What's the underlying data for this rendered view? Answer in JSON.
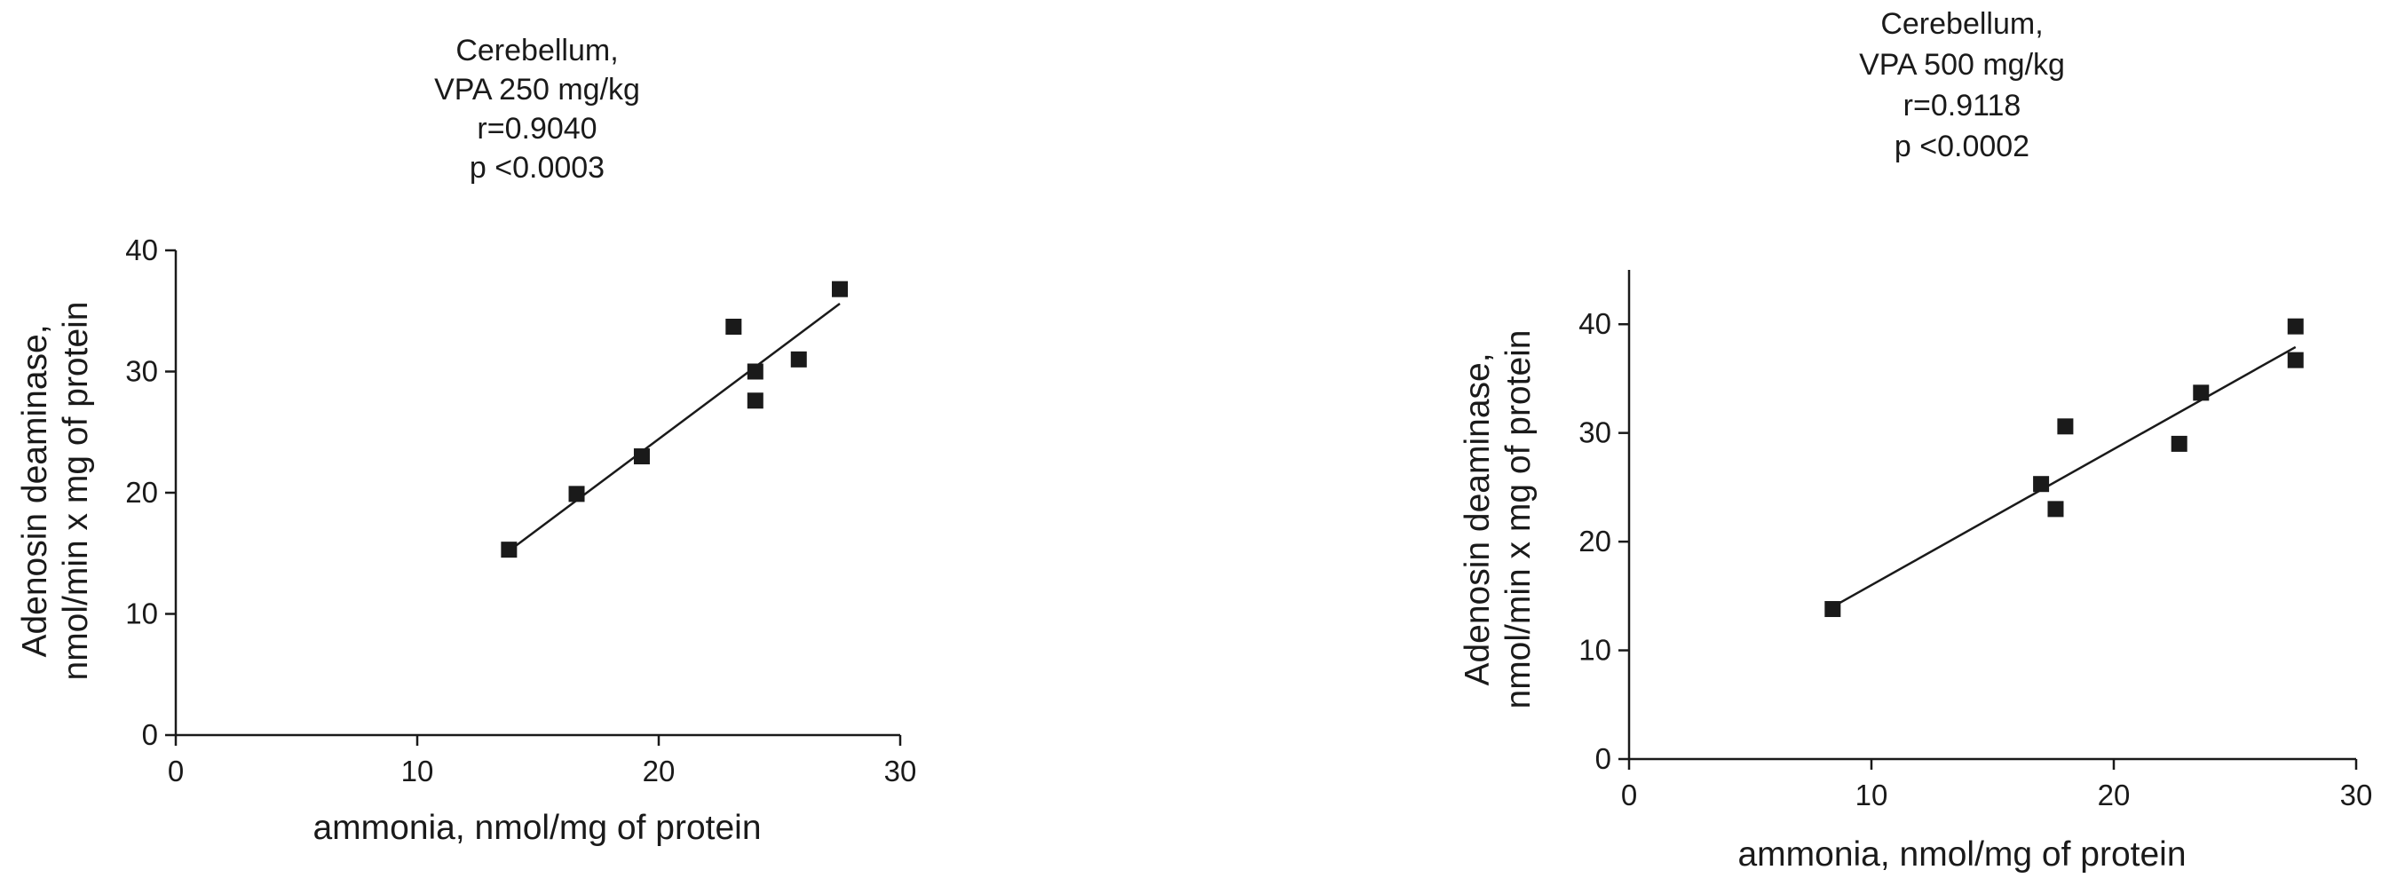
{
  "chart_data": [
    {
      "type": "scatter",
      "title_lines": [
        "Cerebellum,",
        "VPA 250 mg/kg",
        "r=0.9040",
        "p <0.0003"
      ],
      "xlabel": "ammonia, nmol/mg of protein",
      "ylabel_lines": [
        "Adenosin deaminase,",
        "nmol/min x mg of protein"
      ],
      "xlim": [
        0,
        30
      ],
      "ylim": [
        0,
        40
      ],
      "xticks": [
        0,
        10,
        20,
        30
      ],
      "yticks": [
        0,
        10,
        20,
        30,
        40
      ],
      "points": [
        {
          "x": 13.8,
          "y": 15.3
        },
        {
          "x": 16.6,
          "y": 19.9
        },
        {
          "x": 19.3,
          "y": 23.0
        },
        {
          "x": 23.1,
          "y": 33.7
        },
        {
          "x": 24.0,
          "y": 30.0
        },
        {
          "x": 24.0,
          "y": 27.6
        },
        {
          "x": 25.8,
          "y": 31.0
        },
        {
          "x": 27.5,
          "y": 36.8
        }
      ],
      "fit_line": {
        "x": [
          13.8,
          27.5
        ],
        "y": [
          15.2,
          35.6
        ]
      },
      "color": "#1a1a1a",
      "grid": false,
      "legend": "none"
    },
    {
      "type": "scatter",
      "title_lines": [
        "Cerebellum,",
        "VPA 500 mg/kg",
        "r=0.9118",
        "p <0.0002"
      ],
      "xlabel": "ammonia, nmol/mg of protein",
      "ylabel_lines": [
        "Adenosin deaminase,",
        "nmol/min x mg of protein"
      ],
      "xlim": [
        0,
        30
      ],
      "ylim": [
        0,
        45
      ],
      "xticks": [
        0,
        10,
        20,
        30
      ],
      "yticks": [
        0,
        10,
        20,
        30,
        40
      ],
      "points": [
        {
          "x": 8.4,
          "y": 13.8
        },
        {
          "x": 17.0,
          "y": 25.3
        },
        {
          "x": 17.6,
          "y": 23.0
        },
        {
          "x": 18.0,
          "y": 30.6
        },
        {
          "x": 22.7,
          "y": 29.0
        },
        {
          "x": 23.6,
          "y": 33.7
        },
        {
          "x": 27.5,
          "y": 39.8
        },
        {
          "x": 27.5,
          "y": 36.7
        }
      ],
      "fit_line": {
        "x": [
          8.4,
          27.5
        ],
        "y": [
          14.0,
          37.9
        ]
      },
      "color": "#1a1a1a",
      "grid": false,
      "legend": "none"
    }
  ]
}
